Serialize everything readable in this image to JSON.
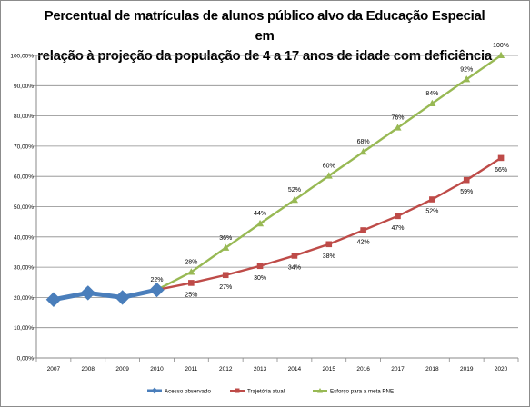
{
  "chart_data": {
    "type": "line",
    "title": "Percentual de matrículas de alunos público alvo da Educação Especial em relação à projeção da população de 4 a 17 anos de idade com deficiência",
    "title_lines": [
      "Percentual de matrículas de alunos público alvo da Educação Especial em",
      "relação à projeção da população de 4 a 17 anos de idade com deficiência"
    ],
    "x": [
      "2007",
      "2008",
      "2009",
      "2010",
      "2011",
      "2012",
      "2013",
      "2014",
      "2015",
      "2016",
      "2017",
      "2018",
      "2019",
      "2020"
    ],
    "ylim": [
      0,
      100
    ],
    "y_ticks": [
      "0,00%",
      "10,00%",
      "20,00%",
      "30,00%",
      "40,00%",
      "50,00%",
      "60,00%",
      "70,00%",
      "80,00%",
      "90,00%",
      "100,00%"
    ],
    "grid": true,
    "legend_position": "bottom",
    "series": [
      {
        "name": "Acesso observado",
        "color": "#4a7ebb",
        "marker": "diamond",
        "values": [
          19.3,
          21.5,
          20.0,
          22.5,
          null,
          null,
          null,
          null,
          null,
          null,
          null,
          null,
          null,
          null
        ],
        "labels": [
          null,
          null,
          null,
          null,
          null,
          null,
          null,
          null,
          null,
          null,
          null,
          null,
          null,
          null
        ]
      },
      {
        "name": "Trajetória atual",
        "color": "#be4b48",
        "marker": "square",
        "values": [
          null,
          null,
          null,
          22.5,
          24.8,
          27.4,
          30.4,
          33.8,
          37.6,
          42.2,
          46.9,
          52.4,
          58.8,
          66.1
        ],
        "labels": [
          null,
          null,
          null,
          null,
          "25%",
          "27%",
          "30%",
          "34%",
          "38%",
          "42%",
          "47%",
          "52%",
          "59%",
          "66%"
        ]
      },
      {
        "name": "Esforço para a meta PNE",
        "color": "#98b954",
        "marker": "triangle",
        "values": [
          null,
          null,
          null,
          22.5,
          28.4,
          36.4,
          44.4,
          52.2,
          60.2,
          68.1,
          76.1,
          84.1,
          92.1,
          100.0
        ],
        "labels": [
          null,
          null,
          null,
          "22%",
          "28%",
          "36%",
          "44%",
          "52%",
          "60%",
          "68%",
          "76%",
          "84%",
          "92%",
          "100%"
        ]
      }
    ]
  }
}
